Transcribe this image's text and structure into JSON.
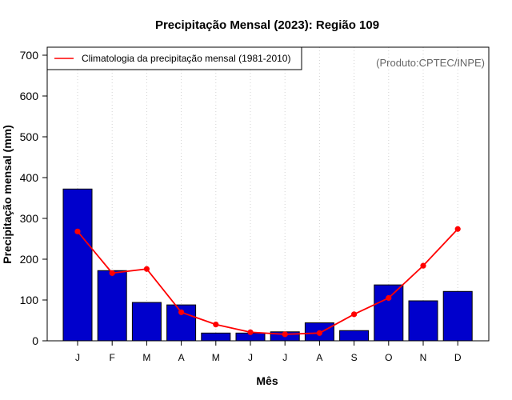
{
  "chart_data": {
    "type": "bar",
    "title": "Precipitação Mensal (2023): Região 109",
    "xlabel": "Mês",
    "ylabel": "Precipitação mensal (mm)",
    "ylim": [
      0,
      700
    ],
    "yticks": [
      0,
      100,
      200,
      300,
      400,
      500,
      600,
      700
    ],
    "categories": [
      "J",
      "F",
      "M",
      "A",
      "M",
      "J",
      "J",
      "A",
      "S",
      "O",
      "N",
      "D"
    ],
    "series": [
      {
        "name": "Precipitação mensal 2023",
        "type": "bar",
        "color": "#0000CC",
        "values": [
          372,
          172,
          94,
          88,
          19,
          19,
          22,
          44,
          25,
          137,
          98,
          121
        ]
      },
      {
        "name": "Climatologia da precipitação mensal (1981-2010)",
        "type": "line",
        "color": "#FF0000",
        "values": [
          268,
          166,
          176,
          70,
          40,
          21,
          16,
          19,
          65,
          105,
          184,
          274
        ]
      }
    ],
    "legend": {
      "entries": [
        "Climatologia da precipitação mensal (1981-2010)"
      ],
      "position": "top-left"
    },
    "credit": "(Produto:CPTEC/INPE)",
    "grid": "vertical dotted"
  }
}
